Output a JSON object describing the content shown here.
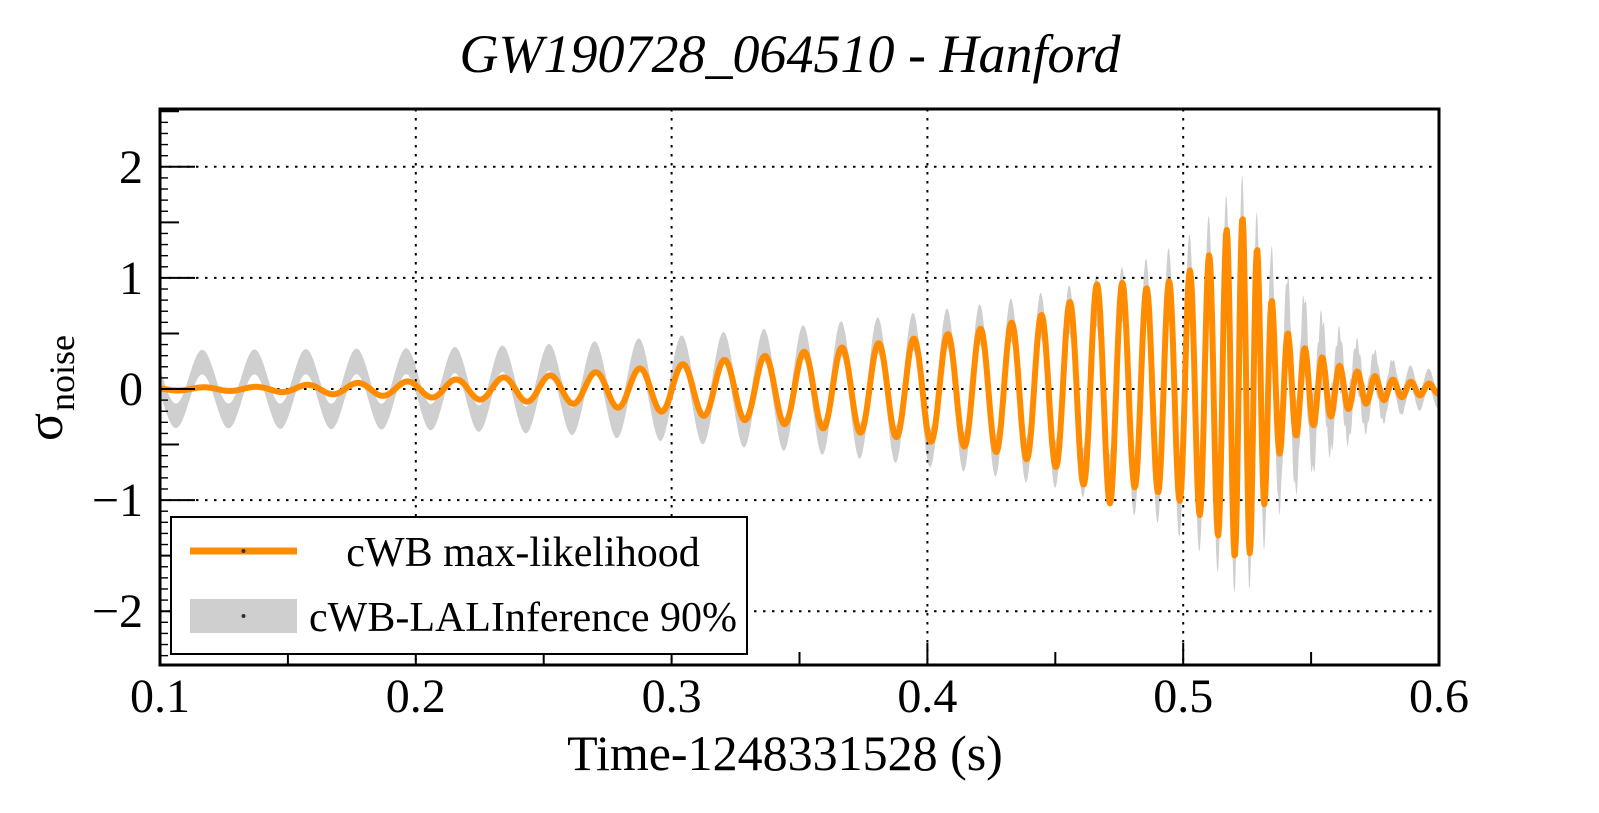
{
  "chart_data": {
    "type": "line",
    "title": "GW190728_064510 - Hanford",
    "xlabel": "Time-1248331528 (s)",
    "ylabel": {
      "symbol": "σ",
      "subscript": "noise"
    },
    "xlim": [
      0.1,
      0.6
    ],
    "ylim": [
      -2.49,
      2.52
    ],
    "x_ticks": [
      0.1,
      0.2,
      0.3,
      0.4,
      0.5,
      0.6
    ],
    "x_tick_labels": [
      "0.1",
      "0.2",
      "0.3",
      "0.4",
      "0.5",
      "0.6"
    ],
    "x_minor_step": 0.05,
    "y_ticks": [
      -2,
      -1,
      0,
      1,
      2
    ],
    "y_tick_labels": [
      "−2",
      "−1",
      "0",
      "1",
      "2"
    ],
    "y_minor_step": 0.5,
    "y_fine_step": 0.1,
    "grid": {
      "style": "dotted",
      "at_major_ticks": true
    },
    "colors": {
      "curve": "#ff8c00",
      "band": "#cfcfcf",
      "axes": "#000000",
      "background": "#ffffff"
    },
    "legend": {
      "position": "bottom-left",
      "entries": [
        {
          "label": "cWB max-likelihood",
          "type": "line",
          "color": "#ff8c00"
        },
        {
          "label": "cWB-LALInference 90%",
          "type": "band",
          "color": "#cfcfcf"
        }
      ]
    },
    "series": {
      "sample_step_s": 0.0003,
      "frequency_profile_hz": [
        [
          0.1,
          48
        ],
        [
          0.18,
          51
        ],
        [
          0.26,
          56
        ],
        [
          0.32,
          62
        ],
        [
          0.37,
          69
        ],
        [
          0.41,
          77
        ],
        [
          0.44,
          86
        ],
        [
          0.465,
          96
        ],
        [
          0.48,
          105
        ],
        [
          0.495,
          118
        ],
        [
          0.508,
          135
        ],
        [
          0.518,
          155
        ],
        [
          0.526,
          175
        ],
        [
          0.532,
          175
        ],
        [
          0.54,
          155
        ],
        [
          0.55,
          147
        ],
        [
          0.6,
          140
        ]
      ],
      "cwb_max_likelihood": {
        "color": "#ff8c00",
        "peak_value": 1.55,
        "peak_time_s": 0.52,
        "amplitude_envelope": [
          [
            0.1,
            0.012
          ],
          [
            0.14,
            0.02
          ],
          [
            0.17,
            0.05
          ],
          [
            0.2,
            0.07
          ],
          [
            0.23,
            0.1
          ],
          [
            0.26,
            0.13
          ],
          [
            0.29,
            0.19
          ],
          [
            0.32,
            0.26
          ],
          [
            0.35,
            0.33
          ],
          [
            0.38,
            0.41
          ],
          [
            0.41,
            0.5
          ],
          [
            0.43,
            0.58
          ],
          [
            0.45,
            0.7
          ],
          [
            0.465,
            0.92
          ],
          [
            0.472,
            1.04
          ],
          [
            0.48,
            0.88
          ],
          [
            0.49,
            0.93
          ],
          [
            0.5,
            1.02
          ],
          [
            0.51,
            1.2
          ],
          [
            0.519,
            1.5
          ],
          [
            0.525,
            1.56
          ],
          [
            0.531,
            1.1
          ],
          [
            0.537,
            0.6
          ],
          [
            0.545,
            0.4
          ],
          [
            0.553,
            0.3
          ],
          [
            0.562,
            0.2
          ],
          [
            0.572,
            0.13
          ],
          [
            0.583,
            0.08
          ],
          [
            0.6,
            0.04
          ]
        ]
      },
      "cwb_lalinference_90": {
        "color": "#cfcfcf",
        "band_peak_value": 2.0,
        "band_min_value": -1.75,
        "carrier_amplitude": [
          [
            0.1,
            0.24
          ],
          [
            0.2,
            0.25
          ],
          [
            0.26,
            0.29
          ],
          [
            0.3,
            0.34
          ],
          [
            0.34,
            0.4
          ],
          [
            0.38,
            0.48
          ],
          [
            0.42,
            0.58
          ],
          [
            0.45,
            0.68
          ],
          [
            0.47,
            0.82
          ],
          [
            0.49,
            0.95
          ],
          [
            0.505,
            1.15
          ],
          [
            0.515,
            1.38
          ],
          [
            0.524,
            1.62
          ],
          [
            0.53,
            1.1
          ],
          [
            0.538,
            0.65
          ],
          [
            0.548,
            0.45
          ],
          [
            0.558,
            0.3
          ],
          [
            0.57,
            0.2
          ],
          [
            0.585,
            0.12
          ],
          [
            0.6,
            0.09
          ]
        ],
        "band_halfwidth": [
          [
            0.1,
            0.11
          ],
          [
            0.25,
            0.12
          ],
          [
            0.35,
            0.15
          ],
          [
            0.42,
            0.18
          ],
          [
            0.46,
            0.22
          ],
          [
            0.5,
            0.27
          ],
          [
            0.52,
            0.33
          ],
          [
            0.532,
            0.38
          ],
          [
            0.54,
            0.32
          ],
          [
            0.55,
            0.24
          ],
          [
            0.56,
            0.17
          ],
          [
            0.58,
            0.11
          ],
          [
            0.6,
            0.08
          ]
        ]
      }
    }
  }
}
